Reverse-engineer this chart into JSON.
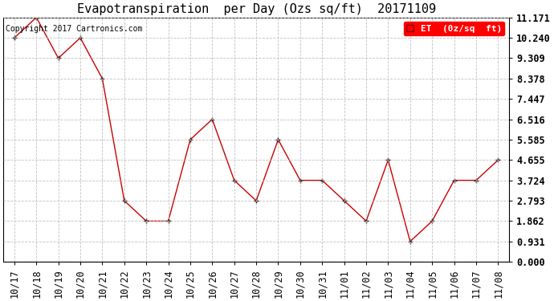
{
  "title": "Evapotranspiration  per Day (Ozs sq/ft)  20171109",
  "copyright": "Copyright 2017 Cartronics.com",
  "legend_label": "ET  (0z/sq  ft)",
  "x_labels": [
    "10/17",
    "10/18",
    "10/19",
    "10/20",
    "10/21",
    "10/22",
    "10/23",
    "10/24",
    "10/25",
    "10/26",
    "10/27",
    "10/28",
    "10/29",
    "10/30",
    "10/31",
    "11/01",
    "11/02",
    "11/03",
    "11/04",
    "11/05",
    "11/06",
    "11/07",
    "11/08"
  ],
  "y_values": [
    10.24,
    11.171,
    9.309,
    10.24,
    8.378,
    2.793,
    1.862,
    1.862,
    5.585,
    6.516,
    3.724,
    2.793,
    5.585,
    3.724,
    3.724,
    2.793,
    1.862,
    4.655,
    0.931,
    1.862,
    3.724,
    3.724,
    4.655
  ],
  "y_ticks": [
    0.0,
    0.931,
    1.862,
    2.793,
    3.724,
    4.655,
    5.585,
    6.516,
    7.447,
    8.378,
    9.309,
    10.24,
    11.171
  ],
  "ylim": [
    0.0,
    11.171
  ],
  "line_color": "#cc0000",
  "marker_color": "#000000",
  "background_color": "#ffffff",
  "grid_color": "#bbbbbb",
  "title_fontsize": 11,
  "copyright_fontsize": 7,
  "tick_fontsize": 8.5,
  "legend_fontsize": 8
}
